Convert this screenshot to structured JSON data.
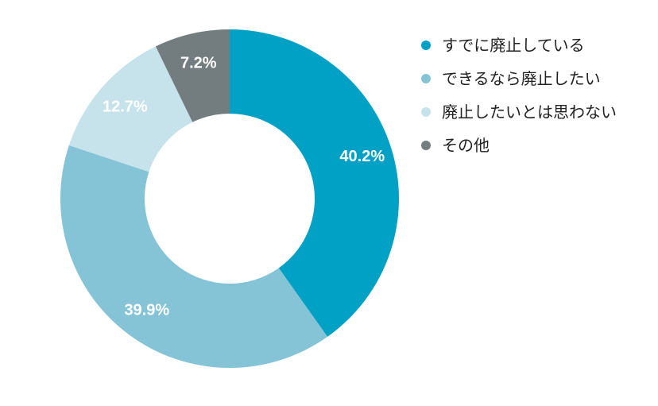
{
  "chart_data": {
    "type": "donut",
    "title": "",
    "legend_position": "right",
    "start_angle_deg": 0,
    "direction": "clockwise",
    "slices": [
      {
        "name": "すでに廃止している",
        "value": 40.2,
        "label": "40.2%",
        "color": "#00a1c4"
      },
      {
        "name": "できるなら廃止したい",
        "value": 39.9,
        "label": "39.9%",
        "color": "#84c4d6"
      },
      {
        "name": "廃止したいとは思わない",
        "value": 12.7,
        "label": "12.7%",
        "color": "#c6e2ea"
      },
      {
        "name": "その他",
        "value": 7.2,
        "label": "7.2%",
        "color": "#737d7f"
      }
    ]
  },
  "legend": {
    "items": [
      {
        "label": "すでに廃止している",
        "color": "#00a1c4"
      },
      {
        "label": "できるなら廃止したい",
        "color": "#84c4d6"
      },
      {
        "label": "廃止したいとは思わない",
        "color": "#c6e2ea"
      },
      {
        "label": "その他",
        "color": "#737d7f"
      }
    ]
  }
}
